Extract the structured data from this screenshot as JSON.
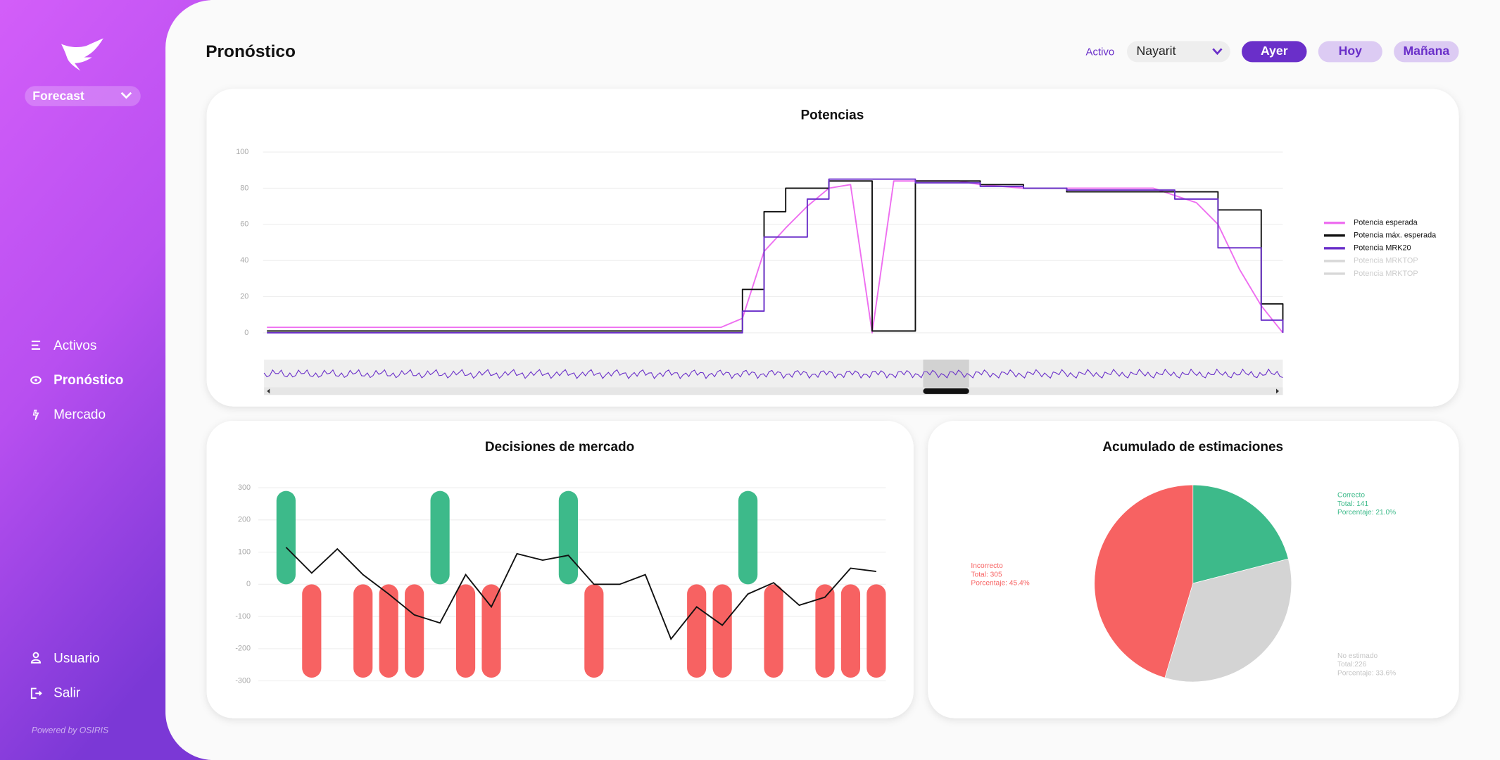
{
  "sidebar": {
    "app_selector": "Forecast",
    "nav": [
      "Activos",
      "Pronóstico",
      "Mercado"
    ],
    "bottom_nav": [
      "Usuario",
      "Salir"
    ],
    "footer": "Powered by OSIRIS"
  },
  "header": {
    "title": "Pronóstico",
    "asset_label": "Activo",
    "asset_value": "Nayarit",
    "day_buttons": [
      "Ayer",
      "Hoy",
      "Mañana"
    ]
  },
  "chart_data": [
    {
      "type": "line",
      "title": "Potencias",
      "ylim": [
        0,
        100
      ],
      "yticks": [
        0,
        20,
        40,
        60,
        80,
        100
      ],
      "grid": true,
      "legend": "right",
      "series": [
        {
          "name": "Potencia esperada",
          "color": "#ee6ef0",
          "values": [
            3,
            3,
            3,
            3,
            3,
            3,
            3,
            3,
            3,
            3,
            3,
            3,
            3,
            3,
            3,
            3,
            3,
            3,
            3,
            3,
            3,
            3,
            8,
            45,
            58,
            70,
            80,
            82,
            0,
            84,
            84,
            84,
            84,
            82,
            81,
            80,
            80,
            80,
            80,
            80,
            80,
            80,
            76,
            72,
            60,
            35,
            15,
            0
          ]
        },
        {
          "name": "Potencia máx. esperada",
          "color": "#111111",
          "step": true,
          "values": [
            1,
            1,
            1,
            1,
            1,
            1,
            1,
            1,
            1,
            1,
            1,
            1,
            1,
            1,
            1,
            1,
            1,
            1,
            1,
            1,
            1,
            1,
            24,
            67,
            80,
            80,
            84,
            84,
            1,
            1,
            84,
            84,
            84,
            82,
            82,
            80,
            80,
            78,
            78,
            78,
            78,
            78,
            78,
            78,
            68,
            68,
            16,
            1
          ]
        },
        {
          "name": "Potencia MRK20",
          "color": "#6a2fc9",
          "step": true,
          "values": [
            0,
            0,
            0,
            0,
            0,
            0,
            0,
            0,
            0,
            0,
            0,
            0,
            0,
            0,
            0,
            0,
            0,
            0,
            0,
            0,
            0,
            0,
            12,
            53,
            53,
            74,
            85,
            85,
            85,
            85,
            83,
            83,
            83,
            81,
            81,
            80,
            80,
            79,
            79,
            79,
            79,
            79,
            74,
            74,
            47,
            47,
            7,
            0
          ]
        },
        {
          "name": "Potencia MRKTOP",
          "color": "#d8d8d8",
          "hidden": true
        },
        {
          "name": "Potencia MRKTOP",
          "color": "#d8d8d8",
          "hidden": true
        }
      ]
    },
    {
      "type": "bar",
      "title": "Decisiones de mercado",
      "ylim": [
        -300,
        300
      ],
      "yticks": [
        -300,
        -200,
        -100,
        0,
        100,
        200,
        300
      ],
      "grid": true,
      "series": [
        {
          "positive_color": "#3dba8a",
          "negative_color": "#f76262",
          "values": [
            290,
            -290,
            null,
            -290,
            -290,
            -290,
            290,
            -290,
            -290,
            null,
            null,
            290,
            -290,
            null,
            null,
            null,
            -290,
            -290,
            290,
            -290,
            null,
            -290,
            -290,
            -290
          ]
        },
        {
          "type": "line",
          "color": "#111111",
          "values": [
            115,
            35,
            110,
            30,
            -30,
            -95,
            -120,
            30,
            -70,
            95,
            75,
            90,
            0,
            0,
            30,
            -170,
            -70,
            -127,
            -30,
            5,
            -65,
            -40,
            50,
            40
          ]
        }
      ]
    },
    {
      "type": "pie",
      "title": "Acumulado de estimaciones",
      "categories": [
        "Correcto",
        "No estimado",
        "Incorrecto"
      ],
      "values": [
        21.0,
        33.6,
        45.4
      ],
      "value_labels": [
        "Porcentaje: 21.0%",
        "Porcentaje: 33.6%",
        "Porcentaje: 45.4%"
      ],
      "total_labels": [
        "Total: 141",
        "Total:226",
        "Total: 305"
      ],
      "colors": [
        "#3dba8a",
        "#d4d4d4",
        "#f76262"
      ]
    }
  ]
}
